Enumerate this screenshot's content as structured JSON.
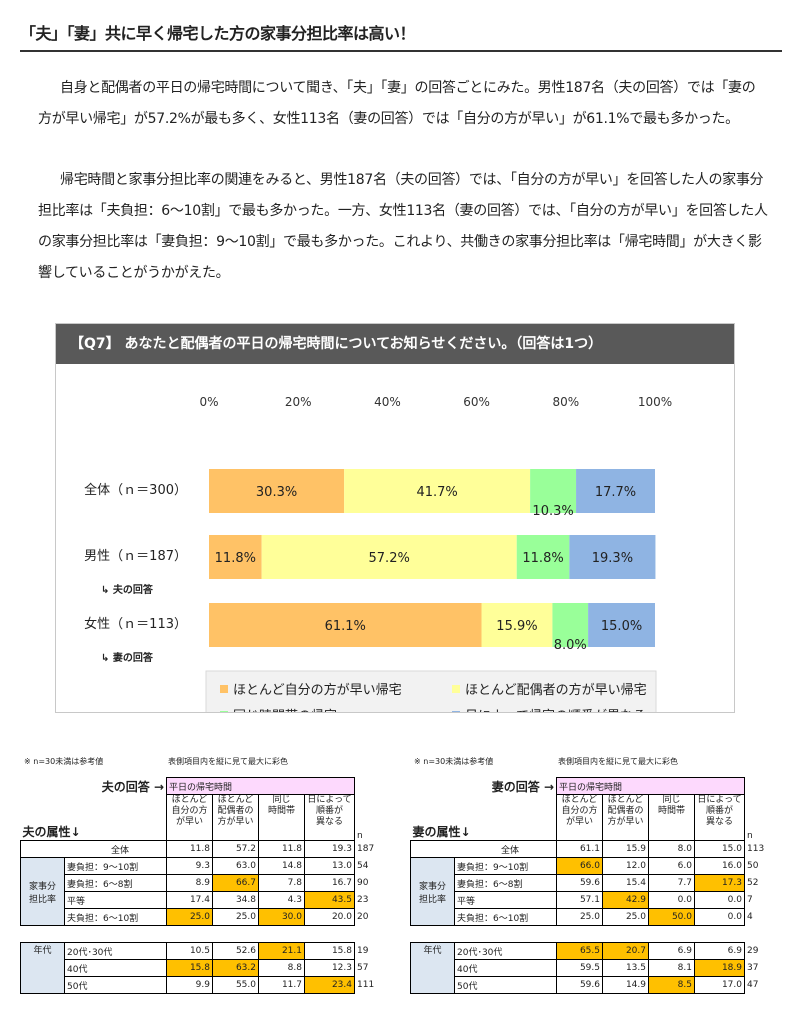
{
  "title": "「夫」「妻」共に早く帰宅した方の家事分担比率は高い！",
  "paragraphs": [
    "自身と配偶者の平日の帰宅時間について聞き、「夫」「妻」の回答ごとにみた。男性187名（夫の回答）では「妻の方が早い帰宅」が57.2%が最も多く、女性113名（妻の回答）では「自分の方が早い」が61.1%で最も多かった。",
    "帰宅時間と家事分担比率の関連をみると、男性187名（夫の回答）では、「自分の方が早い」を回答した人の家事分担比率は「夫負担：6〜10割」で最も多かった。一方、女性113名（妻の回答）では、「自分の方が早い」を回答した人の家事分担比率は「妻負担：9〜10割」で最も多かった。これより、共働きの家事分担比率は「帰宅時間」が大きく影響していることがうかがえた。"
  ],
  "chart_data": {
    "type": "bar",
    "orientation": "horizontal-stacked-100",
    "title": "【Q7】 あなたと配偶者の平日の帰宅時間についてお知らせください。（回答は1つ）",
    "x_ticks": [
      "0%",
      "20%",
      "40%",
      "60%",
      "80%",
      "100%"
    ],
    "xlim": [
      0,
      100
    ],
    "categories": [
      {
        "label": "全体（ｎ＝300）",
        "sublabel": ""
      },
      {
        "label": "男性（ｎ＝187）",
        "sublabel": "↳ 夫の回答"
      },
      {
        "label": "女性（ｎ＝113）",
        "sublabel": "↳ 妻の回答"
      }
    ],
    "series": [
      {
        "name": "ほとんど自分の方が早い帰宅",
        "color": "#ffc266",
        "values": [
          30.3,
          11.8,
          61.1
        ]
      },
      {
        "name": "ほとんど配偶者の方が早い帰宅",
        "color": "#ffff99",
        "values": [
          41.7,
          57.2,
          15.9
        ]
      },
      {
        "name": "同じ時間帯の帰宅",
        "color": "#99ff99",
        "values": [
          10.3,
          11.8,
          8.0
        ]
      },
      {
        "name": "日によって帰宅の順番が異なる",
        "color": "#8fb4e3",
        "values": [
          17.7,
          19.3,
          15.0
        ]
      }
    ],
    "value_labels": [
      [
        "30.3%",
        "41.7%",
        "10.3%",
        "17.7%"
      ],
      [
        "11.8%",
        "57.2%",
        "11.8%",
        "19.3%"
      ],
      [
        "61.1%",
        "15.9%",
        "8.0%",
        "15.0%"
      ]
    ],
    "legend_position": "bottom"
  },
  "tables": [
    {
      "note": "※ n=30未満は参考値",
      "note2": "表側項目内を縦に見て最大に彩色",
      "head1": "夫の回答 →",
      "head2": "夫の属性↓",
      "header_label": "平日の帰宅時間",
      "col_headers": [
        "ほとんど\n自分の方\nが早い",
        "ほとんど\n配偶者の\n方が早い",
        "同じ\n時間帯",
        "日によって\n順番が\n異なる"
      ],
      "n_label": "n",
      "total": {
        "label": "全体",
        "values": [
          "11.8",
          "57.2",
          "11.8",
          "19.3"
        ],
        "n": "187",
        "hl": []
      },
      "groups": [
        {
          "label": "家事分\n担比率",
          "rows": [
            {
              "label": "妻負担：9〜10割",
              "values": [
                "9.3",
                "63.0",
                "14.8",
                "13.0"
              ],
              "n": "54",
              "hl": []
            },
            {
              "label": "妻負担：6〜8割",
              "values": [
                "8.9",
                "66.7",
                "7.8",
                "16.7"
              ],
              "n": "90",
              "hl": [
                1
              ]
            },
            {
              "label": "平等",
              "values": [
                "17.4",
                "34.8",
                "4.3",
                "43.5"
              ],
              "n": "23",
              "hl": [
                3
              ]
            },
            {
              "label": "夫負担：6〜10割",
              "values": [
                "25.0",
                "25.0",
                "30.0",
                "20.0"
              ],
              "n": "20",
              "hl": [
                0,
                2
              ]
            }
          ]
        },
        {
          "label": "年代",
          "rows": [
            {
              "label": "20代･30代",
              "values": [
                "10.5",
                "52.6",
                "21.1",
                "15.8"
              ],
              "n": "19",
              "hl": [
                2
              ]
            },
            {
              "label": "40代",
              "values": [
                "15.8",
                "63.2",
                "8.8",
                "12.3"
              ],
              "n": "57",
              "hl": [
                0,
                1
              ]
            },
            {
              "label": "50代",
              "values": [
                "9.9",
                "55.0",
                "11.7",
                "23.4"
              ],
              "n": "111",
              "hl": [
                3
              ]
            }
          ]
        }
      ]
    },
    {
      "note": "※ n=30未満は参考値",
      "note2": "表側項目内を縦に見て最大に彩色",
      "head1": "妻の回答 →",
      "head2": "妻の属性↓",
      "header_label": "平日の帰宅時間",
      "col_headers": [
        "ほとんど\n自分の方\nが早い",
        "ほとんど\n配偶者の\n方が早い",
        "同じ\n時間帯",
        "日によって\n順番が\n異なる"
      ],
      "n_label": "n",
      "total": {
        "label": "全体",
        "values": [
          "61.1",
          "15.9",
          "8.0",
          "15.0"
        ],
        "n": "113",
        "hl": []
      },
      "groups": [
        {
          "label": "家事分\n担比率",
          "rows": [
            {
              "label": "妻負担：9〜10割",
              "values": [
                "66.0",
                "12.0",
                "6.0",
                "16.0"
              ],
              "n": "50",
              "hl": [
                0
              ]
            },
            {
              "label": "妻負担：6〜8割",
              "values": [
                "59.6",
                "15.4",
                "7.7",
                "17.3"
              ],
              "n": "52",
              "hl": [
                3
              ]
            },
            {
              "label": "平等",
              "values": [
                "57.1",
                "42.9",
                "0.0",
                "0.0"
              ],
              "n": "7",
              "hl": [
                1
              ]
            },
            {
              "label": "夫負担：6〜10割",
              "values": [
                "25.0",
                "25.0",
                "50.0",
                "0.0"
              ],
              "n": "4",
              "hl": [
                2
              ]
            }
          ]
        },
        {
          "label": "年代",
          "rows": [
            {
              "label": "20代･30代",
              "values": [
                "65.5",
                "20.7",
                "6.9",
                "6.9"
              ],
              "n": "29",
              "hl": [
                0,
                1
              ]
            },
            {
              "label": "40代",
              "values": [
                "59.5",
                "13.5",
                "8.1",
                "18.9"
              ],
              "n": "37",
              "hl": [
                3
              ]
            },
            {
              "label": "50代",
              "values": [
                "59.6",
                "14.9",
                "8.5",
                "17.0"
              ],
              "n": "47",
              "hl": [
                2
              ]
            }
          ]
        }
      ]
    }
  ]
}
